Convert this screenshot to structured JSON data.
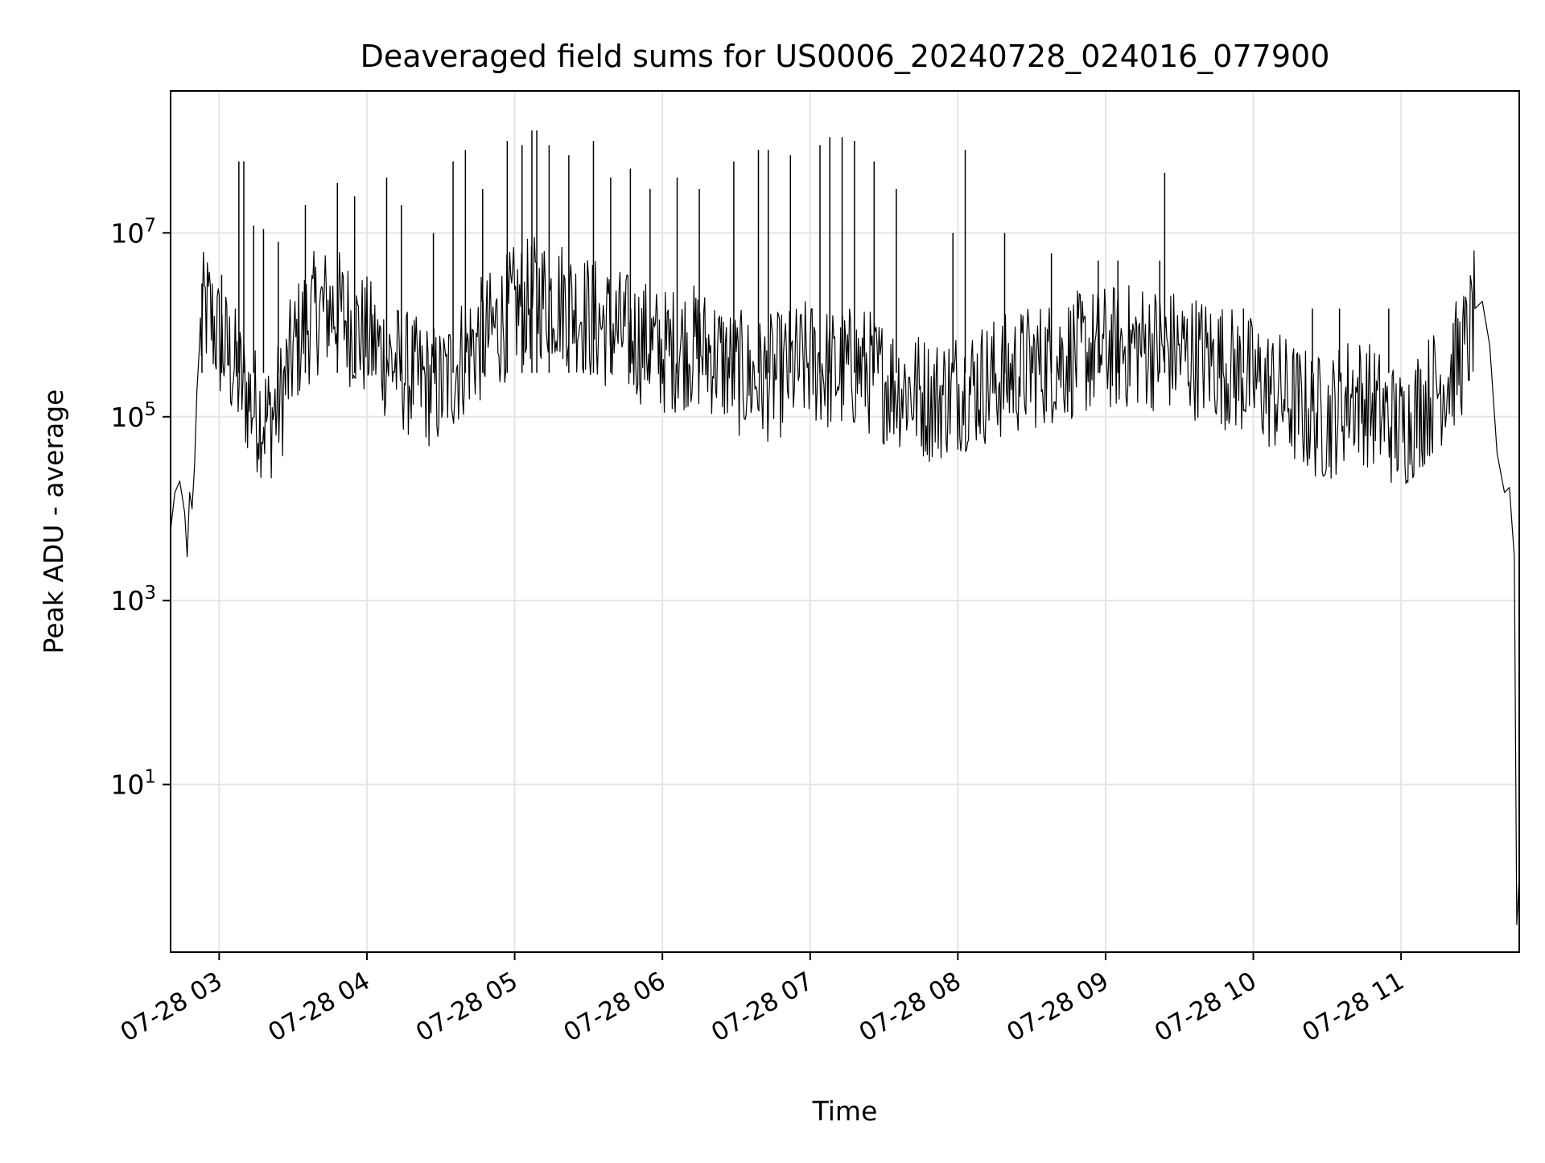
{
  "chart_data": {
    "type": "line",
    "title": "Deaveraged field sums for US0006_20240728_024016_077900",
    "xlabel": "Time",
    "ylabel": "Peak ADU - average",
    "yscale": "log",
    "grid": true,
    "legend": "none",
    "colors": {
      "line": "#000000",
      "grid": "#e5e5e5",
      "axes": "#000000"
    },
    "xlim": [
      "2024-07-28 02:40:16",
      "2024-07-28 11:48:00"
    ],
    "ylim": [
      0.15,
      350000000.0
    ],
    "x_ticks": [
      {
        "value": "2024-07-28 03:00",
        "label": "07-28 03"
      },
      {
        "value": "2024-07-28 04:00",
        "label": "07-28 04"
      },
      {
        "value": "2024-07-28 05:00",
        "label": "07-28 05"
      },
      {
        "value": "2024-07-28 06:00",
        "label": "07-28 06"
      },
      {
        "value": "2024-07-28 07:00",
        "label": "07-28 07"
      },
      {
        "value": "2024-07-28 08:00",
        "label": "07-28 08"
      },
      {
        "value": "2024-07-28 09:00",
        "label": "07-28 09"
      },
      {
        "value": "2024-07-28 10:00",
        "label": "07-28 10"
      },
      {
        "value": "2024-07-28 11:00",
        "label": "07-28 11"
      }
    ],
    "y_ticks": [
      {
        "value": 10,
        "base": "10",
        "exp": "1"
      },
      {
        "value": 1000,
        "base": "10",
        "exp": "3"
      },
      {
        "value": 100000,
        "base": "10",
        "exp": "5"
      },
      {
        "value": 10000000,
        "base": "10",
        "exp": "7"
      }
    ],
    "series": [
      {
        "x": [
          "2024-07-28 02:40",
          "2024-07-28 02:42",
          "2024-07-28 02:44",
          "2024-07-28 02:46",
          "2024-07-28 02:47",
          "2024-07-28 02:48",
          "2024-07-28 02:49",
          "2024-07-28 02:50",
          "2024-07-28 02:51",
          "2024-07-28 02:52",
          "2024-07-28 02:54",
          "2024-07-28 02:56",
          "2024-07-28 03:00",
          "2024-07-28 03:05",
          "2024-07-28 03:10",
          "2024-07-28 03:15",
          "2024-07-28 03:20",
          "2024-07-28 03:25",
          "2024-07-28 03:30",
          "2024-07-28 03:35",
          "2024-07-28 03:40",
          "2024-07-28 03:45",
          "2024-07-28 03:50",
          "2024-07-28 03:55",
          "2024-07-28 04:00",
          "2024-07-28 04:10",
          "2024-07-28 04:20",
          "2024-07-28 04:30",
          "2024-07-28 04:40",
          "2024-07-28 04:50",
          "2024-07-28 05:00",
          "2024-07-28 05:10",
          "2024-07-28 05:20",
          "2024-07-28 05:30",
          "2024-07-28 05:40",
          "2024-07-28 05:50",
          "2024-07-28 06:00",
          "2024-07-28 06:10",
          "2024-07-28 06:20",
          "2024-07-28 06:30",
          "2024-07-28 06:40",
          "2024-07-28 06:50",
          "2024-07-28 07:00",
          "2024-07-28 07:10",
          "2024-07-28 07:20",
          "2024-07-28 07:30",
          "2024-07-28 07:40",
          "2024-07-28 07:50",
          "2024-07-28 08:00",
          "2024-07-28 08:15",
          "2024-07-28 08:30",
          "2024-07-28 08:45",
          "2024-07-28 09:00",
          "2024-07-28 09:15",
          "2024-07-28 09:30",
          "2024-07-28 09:45",
          "2024-07-28 10:00",
          "2024-07-28 10:10",
          "2024-07-28 10:20",
          "2024-07-28 10:30",
          "2024-07-28 10:40",
          "2024-07-28 10:50",
          "2024-07-28 11:00",
          "2024-07-28 11:10",
          "2024-07-28 11:20",
          "2024-07-28 11:27",
          "2024-07-28 11:30",
          "2024-07-28 11:33",
          "2024-07-28 11:36",
          "2024-07-28 11:39",
          "2024-07-28 11:42",
          "2024-07-28 11:44",
          "2024-07-28 11:46",
          "2024-07-28 11:47",
          "2024-07-28 11:48"
        ],
        "y": [
          5000,
          15000,
          20000,
          9000,
          3000,
          15000,
          10000,
          30000,
          200000,
          600000,
          1500000,
          1300000,
          700000,
          400000,
          200000,
          120000,
          90000,
          150000,
          500000,
          1000000,
          1400000,
          1500000,
          1300000,
          900000,
          700000,
          400000,
          250000,
          200000,
          500000,
          800000,
          1500000,
          2000000,
          1800000,
          1200000,
          900000,
          700000,
          500000,
          600000,
          500000,
          300000,
          250000,
          300000,
          400000,
          300000,
          350000,
          250000,
          200000,
          150000,
          200000,
          250000,
          350000,
          450000,
          550000,
          600000,
          500000,
          400000,
          250000,
          180000,
          120000,
          90000,
          180000,
          120000,
          70000,
          150000,
          300000,
          600000,
          1500000,
          1800000,
          600000,
          40000,
          15000,
          17000,
          3000,
          0.3,
          1
        ]
      }
    ],
    "spikes": [
      {
        "x": "2024-07-28 02:53",
        "y": 2800000
      },
      {
        "x": "2024-07-28 03:01",
        "y": 3500000
      },
      {
        "x": "2024-07-28 03:08",
        "y": 60000000
      },
      {
        "x": "2024-07-28 03:10",
        "y": 60000000
      },
      {
        "x": "2024-07-28 03:14",
        "y": 12000000
      },
      {
        "x": "2024-07-28 03:18",
        "y": 11000000
      },
      {
        "x": "2024-07-28 03:24",
        "y": 8000000
      },
      {
        "x": "2024-07-28 03:35",
        "y": 20000000
      },
      {
        "x": "2024-07-28 03:48",
        "y": 35000000
      },
      {
        "x": "2024-07-28 03:55",
        "y": 25000000
      },
      {
        "x": "2024-07-28 04:08",
        "y": 40000000
      },
      {
        "x": "2024-07-28 04:14",
        "y": 20000000
      },
      {
        "x": "2024-07-28 04:27",
        "y": 10000000
      },
      {
        "x": "2024-07-28 04:35",
        "y": 60000000
      },
      {
        "x": "2024-07-28 04:40",
        "y": 80000000
      },
      {
        "x": "2024-07-28 04:47",
        "y": 30000000
      },
      {
        "x": "2024-07-28 04:57",
        "y": 100000000
      },
      {
        "x": "2024-07-28 05:03",
        "y": 90000000
      },
      {
        "x": "2024-07-28 05:07",
        "y": 130000000
      },
      {
        "x": "2024-07-28 05:09",
        "y": 130000000
      },
      {
        "x": "2024-07-28 05:14",
        "y": 90000000
      },
      {
        "x": "2024-07-28 05:22",
        "y": 70000000
      },
      {
        "x": "2024-07-28 05:32",
        "y": 100000000
      },
      {
        "x": "2024-07-28 05:39",
        "y": 40000000
      },
      {
        "x": "2024-07-28 05:47",
        "y": 50000000
      },
      {
        "x": "2024-07-28 05:55",
        "y": 30000000
      },
      {
        "x": "2024-07-28 06:06",
        "y": 40000000
      },
      {
        "x": "2024-07-28 06:15",
        "y": 30000000
      },
      {
        "x": "2024-07-28 06:29",
        "y": 60000000
      },
      {
        "x": "2024-07-28 06:39",
        "y": 80000000
      },
      {
        "x": "2024-07-28 06:43",
        "y": 80000000
      },
      {
        "x": "2024-07-28 06:52",
        "y": 70000000
      },
      {
        "x": "2024-07-28 07:04",
        "y": 90000000
      },
      {
        "x": "2024-07-28 07:08",
        "y": 110000000
      },
      {
        "x": "2024-07-28 07:13",
        "y": 110000000
      },
      {
        "x": "2024-07-28 07:18",
        "y": 100000000
      },
      {
        "x": "2024-07-28 07:26",
        "y": 60000000
      },
      {
        "x": "2024-07-28 07:35",
        "y": 30000000
      },
      {
        "x": "2024-07-28 08:03",
        "y": 80000000
      },
      {
        "x": "2024-07-28 07:58",
        "y": 10000000
      },
      {
        "x": "2024-07-28 08:19",
        "y": 10000000
      },
      {
        "x": "2024-07-28 08:38",
        "y": 6000000
      },
      {
        "x": "2024-07-28 08:57",
        "y": 5000000
      },
      {
        "x": "2024-07-28 09:05",
        "y": 5000000
      },
      {
        "x": "2024-07-28 09:22",
        "y": 5000000
      },
      {
        "x": "2024-07-28 09:24",
        "y": 45000000
      },
      {
        "x": "2024-07-28 09:56",
        "y": 1500000
      },
      {
        "x": "2024-07-28 10:24",
        "y": 1500000
      },
      {
        "x": "2024-07-28 10:35",
        "y": 1500000
      },
      {
        "x": "2024-07-28 10:55",
        "y": 1500000
      }
    ]
  }
}
